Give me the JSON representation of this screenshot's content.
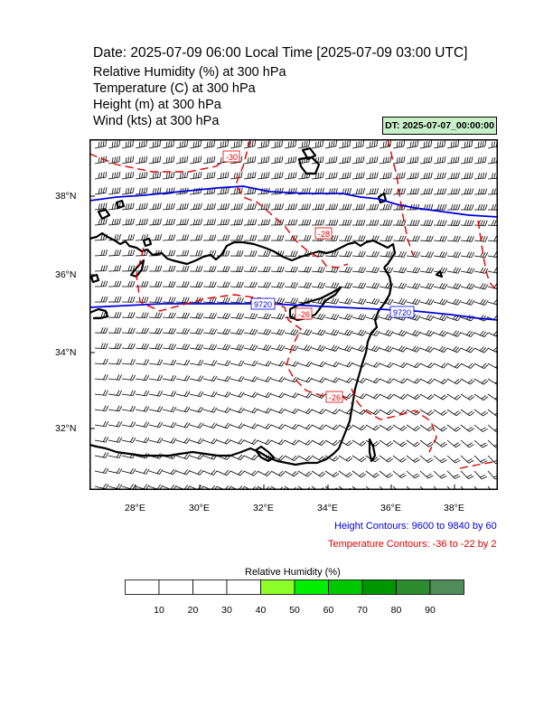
{
  "header": {
    "title": "Date: 2025-07-09  06:00 Local Time [2025-07-09  03:00 UTC]",
    "variables": [
      "Relative Humidity   (%)     at   300 hPa",
      "Temperature   (C)     at   300 hPa",
      "Height   (m)     at   300 hPa",
      "Wind   (kts)     at   300 hPa"
    ],
    "init_time": "DT: 2025-07-07_00:00:00"
  },
  "map": {
    "lon_ticks": [
      "28°E",
      "30°E",
      "32°E",
      "34°E",
      "36°E",
      "38°E"
    ],
    "lat_ticks": [
      "38°N",
      "36°N",
      "34°N",
      "32°N"
    ],
    "lon_range": [
      26.7,
      39.4
    ],
    "lat_range": [
      30.4,
      39.4
    ],
    "height_contour_labels": [
      "9720",
      "9720"
    ],
    "temperature_contour_labels": [
      "-30",
      "-28",
      "-26",
      "-26"
    ],
    "height_color": "#0000dd",
    "temperature_color": "#dd0000",
    "coast_color": "#000000"
  },
  "legend": {
    "height_contours": "Height Contours: 9600 to 9840 by 60",
    "temperature_contours": "Temperature Contours: -36 to -22 by 2"
  },
  "colorbar": {
    "title": "Relative Humidity  (%)",
    "labels": [
      "10",
      "20",
      "30",
      "40",
      "50",
      "60",
      "70",
      "80",
      "90"
    ],
    "colors": [
      "#ffffff",
      "#ffffff",
      "#ffffff",
      "#ffffff",
      "#8cff28",
      "#00ee00",
      "#00c800",
      "#009600",
      "#2d8c2d",
      "#4e8c5a"
    ]
  }
}
